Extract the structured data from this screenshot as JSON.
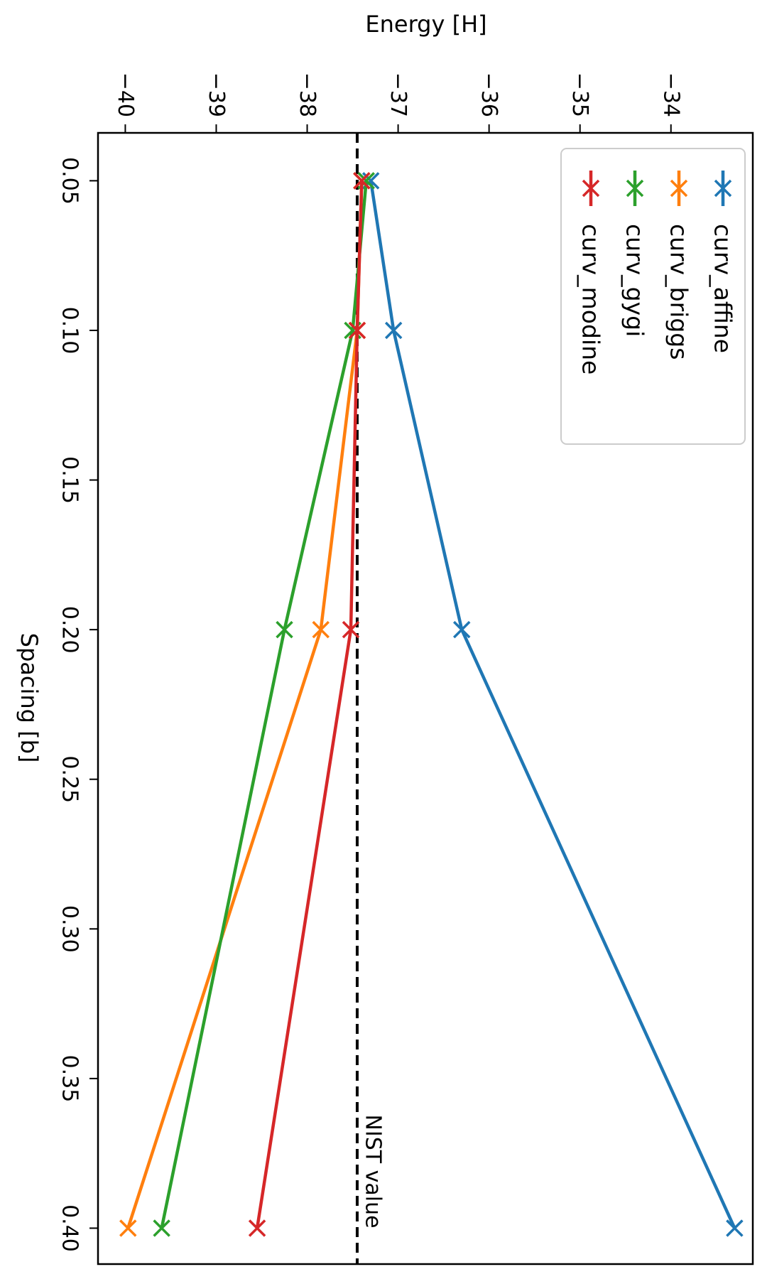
{
  "chart_data": {
    "type": "line",
    "orientation": "rotated-90-clockwise",
    "title": "",
    "xlabel": "Spacing [b]",
    "ylabel": "Energy [H]",
    "xlim": [
      0.034,
      0.412
    ],
    "ylim": [
      -40.3,
      -33.1
    ],
    "x_ticks": [
      0.05,
      0.1,
      0.15,
      0.2,
      0.25,
      0.3,
      0.35,
      0.4
    ],
    "x_tick_labels": [
      "0.05",
      "0.10",
      "0.15",
      "0.20",
      "0.25",
      "0.30",
      "0.35",
      "0.40"
    ],
    "y_ticks": [
      -40,
      -39,
      -38,
      -37,
      -36,
      -35,
      -34
    ],
    "y_tick_labels": [
      "−40",
      "−39",
      "−38",
      "−37",
      "−36",
      "−35",
      "−34"
    ],
    "legend_position": "top-right",
    "series": [
      {
        "name": "curv_affine",
        "color": "#1f77b4",
        "marker": "x",
        "x": [
          0.05,
          0.1,
          0.2,
          0.4
        ],
        "y": [
          -37.3,
          -37.05,
          -36.3,
          -33.3
        ]
      },
      {
        "name": "curv_briggs",
        "color": "#ff7f0e",
        "marker": "x",
        "x": [
          0.05,
          0.1,
          0.2,
          0.4
        ],
        "y": [
          -37.4,
          -37.45,
          -37.85,
          -39.97
        ]
      },
      {
        "name": "curv_gygi",
        "color": "#2ca02c",
        "marker": "x",
        "x": [
          0.05,
          0.1,
          0.2,
          0.4
        ],
        "y": [
          -37.35,
          -37.5,
          -38.25,
          -39.6
        ]
      },
      {
        "name": "curv_modine",
        "color": "#d62728",
        "marker": "x",
        "x": [
          0.05,
          0.1,
          0.2,
          0.4
        ],
        "y": [
          -37.4,
          -37.45,
          -37.52,
          -38.55
        ]
      }
    ],
    "reference_line": {
      "label": "NIST value",
      "y": -37.45,
      "style": "dashed",
      "color": "#000000"
    }
  }
}
